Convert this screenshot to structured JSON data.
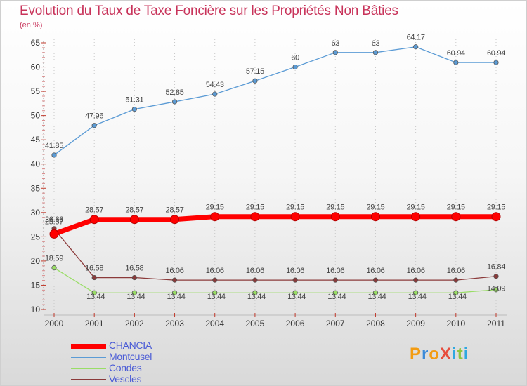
{
  "chart_data": {
    "type": "line",
    "title": "Evolution du Taux de Taxe Foncière sur les Propriétés Non Bâties",
    "ylabel": "(en %)",
    "xlabel": "",
    "categories": [
      "2000",
      "2001",
      "2002",
      "2003",
      "2004",
      "2005",
      "2006",
      "2007",
      "2008",
      "2009",
      "2010",
      "2011"
    ],
    "ylim": [
      10,
      65
    ],
    "yticks": [
      "10",
      "15",
      "20",
      "25",
      "30",
      "35",
      "40",
      "45",
      "50",
      "55",
      "60",
      "65"
    ],
    "series": [
      {
        "name": "CHANCIA",
        "color": "#ff0000",
        "values": [
          25.57,
          28.57,
          28.57,
          28.57,
          29.15,
          29.15,
          29.15,
          29.15,
          29.15,
          29.15,
          29.15,
          29.15
        ],
        "labels": [
          "25.57",
          "28.57",
          "28.57",
          "28.57",
          "29.15",
          "29.15",
          "29.15",
          "29.15",
          "29.15",
          "29.15",
          "29.15",
          "29.15"
        ]
      },
      {
        "name": "Montcusel",
        "color": "#5b9bd5",
        "values": [
          41.85,
          47.96,
          51.31,
          52.85,
          54.43,
          57.15,
          60,
          63,
          63,
          64.17,
          60.94,
          60.94
        ],
        "labels": [
          "41.85",
          "47.96",
          "51.31",
          "52.85",
          "54.43",
          "57.15",
          "60",
          "63",
          "63",
          "64.17",
          "60.94",
          "60.94"
        ]
      },
      {
        "name": "Condes",
        "color": "#99dd66",
        "values": [
          18.59,
          13.44,
          13.44,
          13.44,
          13.44,
          13.44,
          13.44,
          13.44,
          13.44,
          13.44,
          13.44,
          14.09
        ],
        "labels": [
          "18.59",
          "13.44",
          "13.44",
          "13.44",
          "13.44",
          "13.44",
          "13.44",
          "13.44",
          "13.44",
          "13.44",
          "13.44",
          "14.09"
        ]
      },
      {
        "name": "Vescles",
        "color": "#8b3a3a",
        "values": [
          26.66,
          16.58,
          16.58,
          16.06,
          16.06,
          16.06,
          16.06,
          16.06,
          16.06,
          16.06,
          16.06,
          16.84
        ],
        "labels": [
          "26.66",
          "16.58",
          "16.58",
          "16.06",
          "16.06",
          "16.06",
          "16.06",
          "16.06",
          "16.06",
          "16.06",
          "16.06",
          "16.84"
        ]
      }
    ],
    "legend": "bottom-left",
    "grid": "vertical-dotted"
  },
  "logo": {
    "text": "ProXiti",
    "p": "P",
    "r": "r",
    "o": "o",
    "x": "X",
    "i": "i",
    "t": "t",
    "i2": "i"
  }
}
